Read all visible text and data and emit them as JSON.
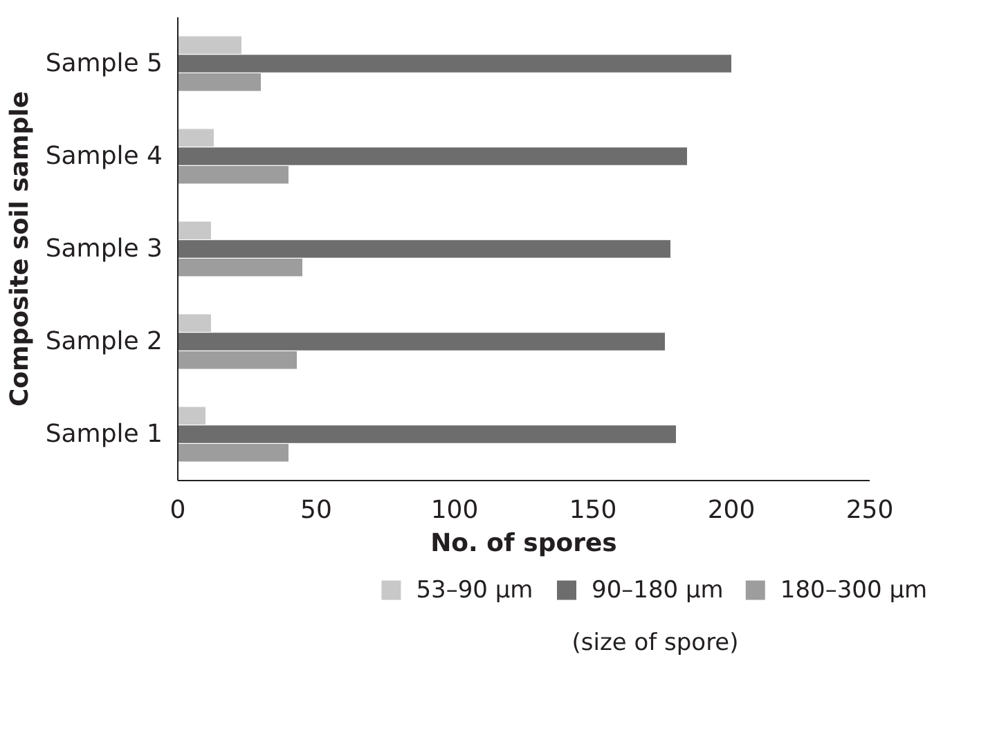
{
  "chart_data": {
    "type": "bar",
    "orientation": "horizontal",
    "xlabel": "No. of spores",
    "ylabel": "Composite soil sample",
    "categories": [
      "Sample 5",
      "Sample 4",
      "Sample 3",
      "Sample 2",
      "Sample 1"
    ],
    "series": [
      {
        "name": "53–90 µm",
        "color": "#c8c8c8",
        "values": [
          23,
          13,
          12,
          12,
          10
        ]
      },
      {
        "name": "90–180 µm",
        "color": "#6d6d6e",
        "values": [
          200,
          184,
          178,
          176,
          180
        ]
      },
      {
        "name": "180–300 µm",
        "color": "#9d9d9d",
        "values": [
          30,
          40,
          45,
          43,
          40
        ]
      }
    ],
    "xlim": [
      0,
      250
    ],
    "xticks": [
      0,
      50,
      100,
      150,
      200,
      250
    ],
    "legend": "bottom",
    "legend_title": "(size of spore)"
  }
}
